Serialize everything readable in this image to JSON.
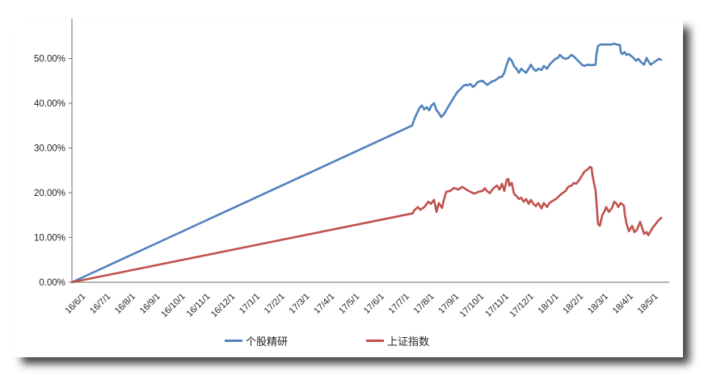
{
  "chart_data": {
    "type": "line",
    "title": "",
    "grid": false,
    "legend_position": "bottom",
    "x_axis": {
      "span_months": 24,
      "labels": [
        "16/6/1",
        "16/7/1",
        "16/8/1",
        "16/9/1",
        "16/10/1",
        "16/11/1",
        "16/12/1",
        "17/1/1",
        "17/2/1",
        "17/3/1",
        "17/4/1",
        "17/5/1",
        "17/6/1",
        "17/7/1",
        "17/8/1",
        "17/9/1",
        "17/10/1",
        "17/11/1",
        "17/12/1",
        "18/1/1",
        "18/2/1",
        "18/3/1",
        "18/4/1",
        "18/5/1"
      ]
    },
    "y_axis": {
      "min": 0,
      "max": 58.9,
      "tick_values": [
        0,
        10,
        20,
        30,
        40,
        50
      ],
      "tick_labels": [
        "0.00%",
        "10.00%",
        "20.00%",
        "30.00%",
        "40.00%",
        "50.00%"
      ]
    },
    "series": [
      {
        "name": "个股精研",
        "color": "#4F81BD",
        "points": [
          [
            0,
            0
          ],
          [
            13.67,
            35.0
          ],
          [
            13.77,
            36.6
          ],
          [
            13.87,
            37.8
          ],
          [
            13.96,
            38.9
          ],
          [
            14.06,
            39.5
          ],
          [
            14.16,
            38.6
          ],
          [
            14.26,
            39.1
          ],
          [
            14.35,
            38.4
          ],
          [
            14.45,
            39.5
          ],
          [
            14.55,
            40.0
          ],
          [
            14.65,
            38.4
          ],
          [
            14.74,
            37.8
          ],
          [
            14.84,
            36.9
          ],
          [
            14.94,
            37.5
          ],
          [
            15.04,
            38.4
          ],
          [
            15.13,
            39.3
          ],
          [
            15.23,
            40.2
          ],
          [
            15.33,
            41.1
          ],
          [
            15.43,
            42.0
          ],
          [
            15.52,
            42.7
          ],
          [
            15.62,
            43.2
          ],
          [
            15.72,
            43.8
          ],
          [
            15.81,
            44.1
          ],
          [
            15.91,
            44.0
          ],
          [
            16.01,
            44.3
          ],
          [
            16.11,
            43.6
          ],
          [
            16.2,
            44.0
          ],
          [
            16.3,
            44.7
          ],
          [
            16.4,
            44.9
          ],
          [
            16.5,
            45.0
          ],
          [
            16.59,
            44.5
          ],
          [
            16.69,
            44.1
          ],
          [
            16.79,
            44.5
          ],
          [
            16.89,
            44.9
          ],
          [
            16.98,
            45.0
          ],
          [
            17.08,
            45.4
          ],
          [
            17.18,
            45.8
          ],
          [
            17.28,
            45.9
          ],
          [
            17.37,
            46.8
          ],
          [
            17.47,
            48.6
          ],
          [
            17.57,
            50.1
          ],
          [
            17.67,
            49.5
          ],
          [
            17.76,
            48.3
          ],
          [
            17.86,
            47.7
          ],
          [
            17.96,
            46.8
          ],
          [
            18.05,
            47.7
          ],
          [
            18.15,
            47.2
          ],
          [
            18.25,
            46.8
          ],
          [
            18.35,
            47.7
          ],
          [
            18.44,
            48.6
          ],
          [
            18.54,
            47.7
          ],
          [
            18.64,
            47.2
          ],
          [
            18.74,
            47.7
          ],
          [
            18.87,
            47.4
          ],
          [
            18.96,
            48.3
          ],
          [
            19.09,
            47.7
          ],
          [
            19.19,
            48.6
          ],
          [
            19.29,
            49.2
          ],
          [
            19.42,
            49.9
          ],
          [
            19.52,
            50.1
          ],
          [
            19.61,
            50.8
          ],
          [
            19.74,
            50.1
          ],
          [
            19.84,
            49.9
          ],
          [
            19.94,
            50.1
          ],
          [
            20.07,
            50.8
          ],
          [
            20.17,
            50.4
          ],
          [
            20.26,
            49.9
          ],
          [
            20.39,
            49.2
          ],
          [
            20.49,
            48.6
          ],
          [
            20.59,
            48.3
          ],
          [
            20.72,
            48.6
          ],
          [
            20.81,
            48.5
          ],
          [
            20.91,
            48.5
          ],
          [
            21.04,
            48.6
          ],
          [
            21.07,
            50.8
          ],
          [
            21.14,
            52.8
          ],
          [
            21.24,
            53.1
          ],
          [
            21.46,
            53.1
          ],
          [
            21.69,
            53.1
          ],
          [
            21.79,
            53.3
          ],
          [
            21.89,
            53.1
          ],
          [
            22.02,
            53.0
          ],
          [
            22.05,
            51.4
          ],
          [
            22.11,
            51.0
          ],
          [
            22.21,
            51.4
          ],
          [
            22.28,
            50.8
          ],
          [
            22.37,
            51.0
          ],
          [
            22.5,
            50.4
          ],
          [
            22.6,
            49.9
          ],
          [
            22.67,
            49.5
          ],
          [
            22.76,
            49.9
          ],
          [
            22.86,
            49.2
          ],
          [
            22.99,
            48.6
          ],
          [
            23.09,
            50.1
          ],
          [
            23.15,
            49.5
          ],
          [
            23.25,
            48.6
          ],
          [
            23.35,
            49.0
          ],
          [
            23.48,
            49.5
          ],
          [
            23.58,
            49.9
          ],
          [
            23.67,
            49.7
          ]
        ]
      },
      {
        "name": "上证指数",
        "color": "#C0504D",
        "points": [
          [
            0,
            0
          ],
          [
            13.7,
            15.4
          ],
          [
            13.73,
            15.9
          ],
          [
            13.9,
            16.8
          ],
          [
            14.0,
            16.2
          ],
          [
            14.16,
            16.8
          ],
          [
            14.32,
            18.0
          ],
          [
            14.42,
            17.5
          ],
          [
            14.55,
            18.4
          ],
          [
            14.65,
            15.7
          ],
          [
            14.74,
            17.7
          ],
          [
            14.87,
            16.6
          ],
          [
            14.94,
            18.3
          ],
          [
            15.04,
            20.2
          ],
          [
            15.2,
            20.4
          ],
          [
            15.36,
            21.1
          ],
          [
            15.52,
            20.7
          ],
          [
            15.69,
            21.3
          ],
          [
            15.85,
            20.7
          ],
          [
            16.01,
            20.2
          ],
          [
            16.17,
            19.8
          ],
          [
            16.33,
            20.2
          ],
          [
            16.5,
            20.4
          ],
          [
            16.59,
            21.0
          ],
          [
            16.69,
            20.3
          ],
          [
            16.79,
            19.9
          ],
          [
            16.89,
            20.7
          ],
          [
            16.98,
            21.2
          ],
          [
            17.08,
            21.6
          ],
          [
            17.18,
            20.7
          ],
          [
            17.28,
            22.0
          ],
          [
            17.37,
            20.4
          ],
          [
            17.47,
            22.9
          ],
          [
            17.54,
            23.1
          ],
          [
            17.57,
            21.6
          ],
          [
            17.67,
            22.2
          ],
          [
            17.76,
            19.8
          ],
          [
            17.86,
            19.3
          ],
          [
            17.96,
            18.6
          ],
          [
            18.05,
            18.9
          ],
          [
            18.15,
            18.0
          ],
          [
            18.25,
            18.6
          ],
          [
            18.35,
            17.5
          ],
          [
            18.44,
            18.4
          ],
          [
            18.54,
            17.5
          ],
          [
            18.64,
            17.0
          ],
          [
            18.74,
            17.7
          ],
          [
            18.87,
            16.5
          ],
          [
            18.96,
            17.7
          ],
          [
            19.09,
            16.8
          ],
          [
            19.19,
            17.7
          ],
          [
            19.32,
            18.2
          ],
          [
            19.45,
            18.6
          ],
          [
            19.68,
            19.8
          ],
          [
            19.84,
            20.4
          ],
          [
            19.94,
            21.3
          ],
          [
            20.07,
            21.6
          ],
          [
            20.17,
            22.2
          ],
          [
            20.26,
            22.0
          ],
          [
            20.39,
            22.9
          ],
          [
            20.49,
            23.8
          ],
          [
            20.59,
            24.7
          ],
          [
            20.72,
            25.2
          ],
          [
            20.82,
            25.8
          ],
          [
            20.88,
            25.6
          ],
          [
            20.91,
            24.0
          ],
          [
            21.04,
            20.4
          ],
          [
            21.08,
            17.5
          ],
          [
            21.14,
            13.0
          ],
          [
            21.21,
            12.6
          ],
          [
            21.31,
            15.0
          ],
          [
            21.4,
            15.9
          ],
          [
            21.47,
            16.8
          ],
          [
            21.57,
            15.7
          ],
          [
            21.7,
            16.6
          ],
          [
            21.79,
            18.0
          ],
          [
            21.89,
            17.5
          ],
          [
            21.95,
            16.8
          ],
          [
            22.05,
            17.7
          ],
          [
            22.18,
            17.1
          ],
          [
            22.21,
            15.3
          ],
          [
            22.28,
            13.2
          ],
          [
            22.38,
            11.4
          ],
          [
            22.51,
            12.6
          ],
          [
            22.6,
            11.2
          ],
          [
            22.7,
            11.7
          ],
          [
            22.83,
            13.5
          ],
          [
            22.86,
            13.0
          ],
          [
            22.99,
            10.8
          ],
          [
            23.09,
            11.2
          ],
          [
            23.16,
            10.5
          ],
          [
            23.25,
            11.4
          ],
          [
            23.35,
            12.3
          ],
          [
            23.48,
            13.2
          ],
          [
            23.58,
            13.9
          ],
          [
            23.68,
            14.4
          ]
        ]
      }
    ]
  },
  "legend": {
    "item1": "个股精研",
    "item2": "上证指数"
  }
}
